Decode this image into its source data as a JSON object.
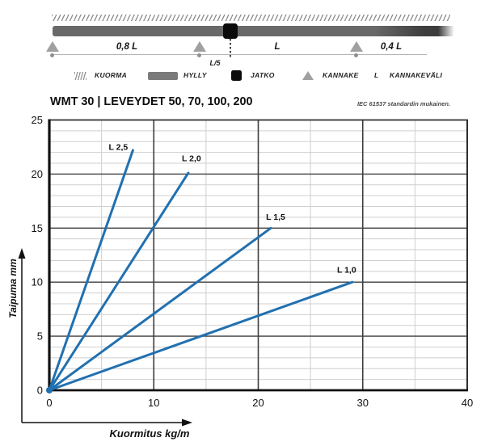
{
  "header": {
    "title": "WMT 30 | LEVEYDET 50, 70, 100, 200",
    "standard_note": "IEC 61537 standardin mukainen."
  },
  "schematic": {
    "span_labels": {
      "left": "0,8 L",
      "joint": "L/5",
      "middle": "L",
      "right": "0,4 L"
    }
  },
  "legend": {
    "items": [
      {
        "symbol": "hatch-swatch",
        "label": "KUORMA"
      },
      {
        "symbol": "shelf-swatch",
        "label": "HYLLY"
      },
      {
        "symbol": "joint-swatch",
        "label": "JATKO"
      },
      {
        "symbol": "bracket-swatch",
        "label": "KANNAKE"
      },
      {
        "symbol": "L",
        "label": "KANNAKEVÄLI"
      }
    ],
    "l_symbol": "L"
  },
  "colors": {
    "line_blue": "#2170b0",
    "shelf_gray": "#696969",
    "joint_black": "#0b0b0b",
    "bracket_gray": "#a0a0a0"
  },
  "chart_data": {
    "type": "line",
    "title": "WMT 30 | LEVEYDET 50, 70, 100, 200",
    "xlabel": "Kuormitus kg/m",
    "ylabel": "Taipuma mm",
    "xlim": [
      0,
      40
    ],
    "ylim": [
      0,
      25
    ],
    "x_major_ticks": [
      0,
      10,
      20,
      30,
      40
    ],
    "y_major_ticks": [
      0,
      5,
      10,
      15,
      20,
      25
    ],
    "x_minor_ticks": [
      5,
      15,
      25,
      35
    ],
    "y_minor_step": 1,
    "grid": true,
    "line_color": "#2170b0",
    "origin_marker": true,
    "series": [
      {
        "name": "L 2,5",
        "x": [
          0,
          8
        ],
        "y": [
          0,
          22.2
        ]
      },
      {
        "name": "L 2,0",
        "x": [
          0,
          13.3
        ],
        "y": [
          0,
          20.1
        ]
      },
      {
        "name": "L 1,5",
        "x": [
          0,
          21.2
        ],
        "y": [
          0,
          15
        ]
      },
      {
        "name": "L 1,0",
        "x": [
          0,
          29
        ],
        "y": [
          0,
          10
        ]
      }
    ]
  }
}
